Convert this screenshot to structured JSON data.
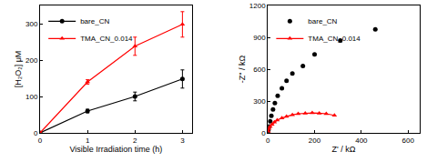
{
  "chart_data": [
    {
      "type": "line",
      "x_label": "Visible Irradiation time (h)",
      "y_label": "[H₂O₂] μM",
      "xlim": [
        0,
        3.2
      ],
      "xticks": [
        0,
        1,
        2,
        3
      ],
      "ylim": [
        0,
        350
      ],
      "yticks": [
        0,
        100,
        200,
        300
      ],
      "grid": false,
      "legend": "upper left",
      "series": [
        {
          "name": "bare_CN",
          "color": "#000000",
          "marker": "circle",
          "line_style": "solid",
          "x": [
            0,
            1,
            2,
            3
          ],
          "values": [
            0,
            60,
            100,
            148
          ],
          "errors": [
            0,
            5,
            12,
            25
          ]
        },
        {
          "name": "TMA_CN_0.014",
          "color": "#ff0000",
          "marker": "triangle-up",
          "line_style": "solid",
          "x": [
            0,
            1,
            2,
            3
          ],
          "values": [
            0,
            140,
            238,
            298
          ],
          "errors": [
            0,
            6,
            25,
            35
          ]
        }
      ]
    },
    {
      "type": "scatter",
      "x_label": "Z' / kΩ",
      "y_label": "-Z'' / kΩ",
      "xlim": [
        0,
        650
      ],
      "xticks": [
        0,
        200,
        400,
        600
      ],
      "ylim": [
        0,
        1200
      ],
      "yticks": [
        0,
        300,
        600,
        900,
        1200
      ],
      "grid": false,
      "legend": "upper left",
      "series": [
        {
          "name": "bare_CN",
          "color": "#000000",
          "marker": "circle",
          "type": "scatter",
          "x": [
            2,
            5,
            10,
            15,
            22,
            30,
            42,
            60,
            80,
            105,
            150,
            200,
            310,
            460
          ],
          "values": [
            20,
            60,
            110,
            160,
            220,
            280,
            350,
            420,
            490,
            560,
            630,
            740,
            870,
            975
          ]
        },
        {
          "name": "TMA_CN_0.014",
          "color": "#ff0000",
          "marker": "triangle-up",
          "type": "line",
          "line_style": "solid",
          "x": [
            2,
            5,
            10,
            18,
            28,
            40,
            60,
            80,
            105,
            130,
            160,
            190,
            220,
            250,
            285
          ],
          "values": [
            15,
            40,
            60,
            80,
            100,
            120,
            140,
            155,
            170,
            180,
            185,
            188,
            185,
            180,
            165
          ]
        }
      ]
    }
  ]
}
